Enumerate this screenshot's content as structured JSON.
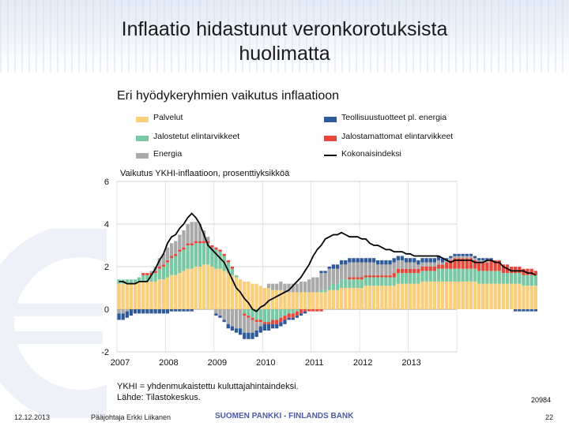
{
  "slide_title_line1": "Inflaatio hidastunut veronkorotuksista",
  "slide_title_line2": "huolimatta",
  "chart_data": {
    "type": "bar",
    "title": "Eri hyödykeryhmien vaikutus inflaatioon",
    "subtitle": "Vaikutus YKHI-inflaatioon, prosenttiyksikköä",
    "ylim": [
      -2,
      6
    ],
    "yticks": [
      "-2",
      "0",
      "2",
      "4",
      "6"
    ],
    "xticks": [
      "2007",
      "2008",
      "2009",
      "2010",
      "2011",
      "2012",
      "2013"
    ],
    "x_start": "2007-01",
    "legend": [
      "Palvelut",
      "Teollisuustuotteet pl. energia",
      "Jalostetut elintarvikkeet",
      "Jalostamattomat elintarvikkeet",
      "Energia",
      "Kokonaisindeksi"
    ],
    "series": [
      {
        "name": "Palvelut",
        "color": "#f9cf7c",
        "values": [
          1.2,
          1.2,
          1.2,
          1.2,
          1.2,
          1.3,
          1.3,
          1.3,
          1.3,
          1.3,
          1.4,
          1.4,
          1.5,
          1.6,
          1.6,
          1.7,
          1.8,
          1.9,
          1.9,
          2.0,
          2.0,
          2.1,
          2.1,
          2.0,
          1.9,
          1.9,
          1.8,
          1.7,
          1.6,
          1.5,
          1.4,
          1.3,
          1.3,
          1.2,
          1.2,
          1.1,
          1.0,
          1.0,
          0.9,
          0.9,
          0.9,
          0.8,
          0.8,
          0.8,
          0.8,
          0.8,
          0.8,
          0.8,
          0.8,
          0.8,
          0.8,
          0.8,
          0.9,
          0.9,
          0.9,
          1.0,
          1.0,
          1.0,
          1.0,
          1.0,
          1.0,
          1.1,
          1.1,
          1.1,
          1.1,
          1.1,
          1.1,
          1.1,
          1.1,
          1.2,
          1.2,
          1.2,
          1.2,
          1.2,
          1.2,
          1.3,
          1.3,
          1.3,
          1.3,
          1.3,
          1.3,
          1.3,
          1.3,
          1.3,
          1.3,
          1.3,
          1.3,
          1.3,
          1.3,
          1.2,
          1.2,
          1.2,
          1.2,
          1.2,
          1.2,
          1.2,
          1.2,
          1.2,
          1.2,
          1.2,
          1.1,
          1.1,
          1.1,
          1.1
        ]
      },
      {
        "name": "Teollisuustuotteet pl. energia",
        "color": "#2e5a9c",
        "values": [
          -0.3,
          -0.3,
          -0.3,
          -0.3,
          -0.2,
          -0.2,
          -0.2,
          -0.2,
          -0.2,
          -0.2,
          -0.2,
          -0.2,
          -0.2,
          -0.1,
          -0.1,
          -0.1,
          -0.1,
          -0.1,
          -0.1,
          0.0,
          0.0,
          0.0,
          0.0,
          0.0,
          -0.1,
          -0.1,
          -0.1,
          -0.2,
          -0.2,
          -0.2,
          -0.3,
          -0.3,
          -0.3,
          -0.3,
          -0.3,
          -0.3,
          -0.3,
          -0.3,
          -0.2,
          -0.2,
          -0.2,
          -0.2,
          -0.1,
          -0.1,
          -0.1,
          -0.1,
          -0.1,
          0.0,
          0.0,
          0.0,
          0.1,
          0.1,
          0.1,
          0.2,
          0.2,
          0.2,
          0.2,
          0.2,
          0.2,
          0.2,
          0.2,
          0.2,
          0.2,
          0.2,
          0.2,
          0.2,
          0.2,
          0.2,
          0.2,
          0.2,
          0.2,
          0.2,
          0.2,
          0.2,
          0.2,
          0.2,
          0.2,
          0.2,
          0.2,
          0.2,
          0.2,
          0.1,
          0.1,
          0.1,
          0.1,
          0.1,
          0.1,
          0.1,
          0.1,
          0.1,
          0.1,
          0.1,
          0.1,
          0.0,
          0.0,
          0.0,
          0.0,
          0.0,
          -0.1,
          -0.1,
          -0.1,
          -0.1,
          -0.1,
          -0.1
        ]
      },
      {
        "name": "Jalostetut elintarvikkeet",
        "color": "#79c8a4",
        "values": [
          0.2,
          0.2,
          0.2,
          0.2,
          0.2,
          0.2,
          0.3,
          0.3,
          0.3,
          0.4,
          0.5,
          0.6,
          0.7,
          0.8,
          0.9,
          1.0,
          1.0,
          1.1,
          1.1,
          1.1,
          1.1,
          1.0,
          1.0,
          0.9,
          0.9,
          0.8,
          0.7,
          0.5,
          0.3,
          0.1,
          0.0,
          -0.2,
          -0.3,
          -0.4,
          -0.5,
          -0.5,
          -0.6,
          -0.6,
          -0.5,
          -0.5,
          -0.4,
          -0.3,
          -0.2,
          -0.2,
          -0.1,
          0.0,
          0.0,
          0.0,
          0.0,
          0.0,
          0.1,
          0.1,
          0.2,
          0.3,
          0.3,
          0.4,
          0.4,
          0.4,
          0.4,
          0.4,
          0.4,
          0.4,
          0.4,
          0.4,
          0.4,
          0.4,
          0.4,
          0.4,
          0.4,
          0.5,
          0.5,
          0.5,
          0.5,
          0.5,
          0.5,
          0.5,
          0.5,
          0.5,
          0.5,
          0.6,
          0.6,
          0.6,
          0.6,
          0.6,
          0.6,
          0.6,
          0.6,
          0.6,
          0.6,
          0.6,
          0.6,
          0.6,
          0.6,
          0.6,
          0.6,
          0.5,
          0.5,
          0.5,
          0.5,
          0.5,
          0.5,
          0.5,
          0.5,
          0.5
        ]
      },
      {
        "name": "Jalostamattomat elintarvikkeet",
        "color": "#e8473b",
        "values": [
          0.0,
          0.0,
          0.0,
          0.0,
          0.0,
          0.0,
          0.1,
          0.1,
          0.1,
          0.1,
          0.1,
          0.1,
          0.1,
          0.1,
          0.1,
          0.1,
          0.1,
          0.1,
          0.1,
          0.1,
          0.1,
          0.1,
          0.1,
          0.1,
          0.1,
          0.1,
          0.1,
          0.1,
          0.1,
          0.0,
          0.0,
          -0.1,
          -0.1,
          -0.1,
          -0.1,
          -0.1,
          -0.1,
          -0.1,
          -0.2,
          -0.2,
          -0.2,
          -0.2,
          -0.2,
          -0.2,
          -0.2,
          -0.2,
          -0.1,
          -0.1,
          -0.1,
          -0.1,
          -0.1,
          0.0,
          0.0,
          0.0,
          0.0,
          0.0,
          0.0,
          0.1,
          0.1,
          0.1,
          0.1,
          0.1,
          0.1,
          0.1,
          0.1,
          0.1,
          0.1,
          0.1,
          0.2,
          0.2,
          0.2,
          0.2,
          0.2,
          0.2,
          0.2,
          0.2,
          0.2,
          0.2,
          0.2,
          0.2,
          0.2,
          0.3,
          0.4,
          0.5,
          0.5,
          0.5,
          0.5,
          0.5,
          0.4,
          0.4,
          0.4,
          0.4,
          0.5,
          0.5,
          0.5,
          0.4,
          0.4,
          0.3,
          0.3,
          0.3,
          0.3,
          0.3,
          0.3,
          0.2
        ]
      },
      {
        "name": "Energia",
        "color": "#a9a9a9",
        "values": [
          -0.2,
          -0.2,
          -0.1,
          0.0,
          0.0,
          0.0,
          0.0,
          0.0,
          0.1,
          0.2,
          0.4,
          0.5,
          0.6,
          0.6,
          0.6,
          0.7,
          0.8,
          0.9,
          1.0,
          0.9,
          0.8,
          0.5,
          0.2,
          0.0,
          -0.2,
          -0.3,
          -0.5,
          -0.7,
          -0.8,
          -0.9,
          -0.9,
          -0.8,
          -0.7,
          -0.6,
          -0.4,
          -0.2,
          0.0,
          0.2,
          0.3,
          0.3,
          0.4,
          0.4,
          0.4,
          0.4,
          0.4,
          0.5,
          0.5,
          0.6,
          0.7,
          0.7,
          0.8,
          0.8,
          0.8,
          0.7,
          0.7,
          0.7,
          0.7,
          0.7,
          0.7,
          0.7,
          0.7,
          0.6,
          0.6,
          0.6,
          0.5,
          0.5,
          0.5,
          0.5,
          0.5,
          0.4,
          0.4,
          0.3,
          0.3,
          0.3,
          0.2,
          0.2,
          0.2,
          0.2,
          0.2,
          0.2,
          0.1,
          0.1,
          0.1,
          0.1,
          0.1,
          0.1,
          0.1,
          0.1,
          0.1,
          0.1,
          0.1,
          0.1,
          0.0,
          0.0,
          0.0,
          0.0,
          0.0,
          0.0,
          0.0,
          0.0,
          0.0,
          0.0,
          0.0,
          0.0
        ]
      }
    ],
    "total": {
      "name": "Kokonaisindeksi",
      "color": "#000000",
      "values": [
        1.3,
        1.3,
        1.2,
        1.2,
        1.2,
        1.3,
        1.3,
        1.3,
        1.6,
        1.9,
        2.3,
        2.6,
        3.1,
        3.4,
        3.5,
        3.8,
        4.0,
        4.3,
        4.5,
        4.3,
        4.0,
        3.5,
        3.0,
        2.8,
        2.6,
        2.4,
        2.2,
        1.8,
        1.4,
        1.0,
        0.8,
        0.5,
        0.3,
        0.0,
        -0.1,
        0.1,
        0.2,
        0.4,
        0.5,
        0.6,
        0.7,
        0.8,
        0.9,
        1.1,
        1.3,
        1.5,
        1.8,
        2.1,
        2.5,
        2.8,
        3.0,
        3.3,
        3.4,
        3.5,
        3.5,
        3.6,
        3.5,
        3.4,
        3.4,
        3.4,
        3.3,
        3.3,
        3.1,
        3.0,
        3.0,
        2.9,
        2.8,
        2.8,
        2.7,
        2.7,
        2.7,
        2.6,
        2.6,
        2.5,
        2.5,
        2.5,
        2.5,
        2.5,
        2.5,
        2.5,
        2.4,
        2.3,
        2.2,
        2.3,
        2.3,
        2.3,
        2.3,
        2.3,
        2.2,
        2.2,
        2.2,
        2.3,
        2.3,
        2.2,
        2.2,
        2.0,
        1.9,
        1.8,
        1.8,
        1.8,
        1.8,
        1.7,
        1.7,
        1.6
      ]
    }
  },
  "note_line1": "YKHI = yhdenmukaistettu kuluttajahintaindeksi.",
  "note_line2": "Lähde: Tilastokeskus.",
  "chart_id": "20984",
  "footer": {
    "date": "12.12.2013",
    "presenter": "Pääjohtaja Erkki Liikanen",
    "bank": "SUOMEN PANKKI - FINLANDS BANK",
    "page": "22"
  }
}
